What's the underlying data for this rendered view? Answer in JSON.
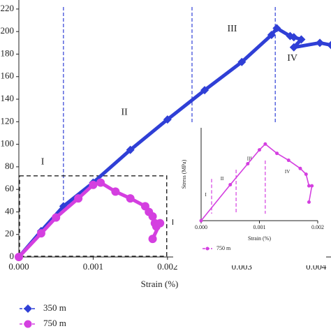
{
  "chart_data": [
    {
      "type": "line",
      "xlabel": "Strain (%)",
      "xlim": [
        0,
        0.0042
      ],
      "ylim": [
        0,
        228
      ],
      "xticks": [
        {
          "value": 0,
          "label": "0.000"
        },
        {
          "value": 0.001,
          "label": "0.001"
        },
        {
          "value": 0.002,
          "label": "0.002"
        },
        {
          "value": 0.003,
          "label": "0.003"
        },
        {
          "value": 0.004,
          "label": "0.004"
        }
      ],
      "yticks": [
        0,
        20,
        40,
        60,
        80,
        100,
        120,
        140,
        160,
        180,
        200,
        220
      ],
      "series": [
        {
          "name": "350 m",
          "color": "#2f3fd6",
          "marker": "diamond",
          "x": [
            0,
            0.0003,
            0.0006,
            0.001,
            0.0015,
            0.002,
            0.0025,
            0.003,
            0.0034,
            0.00347,
            0.00365,
            0.0037,
            0.0038,
            0.0037,
            0.00405,
            0.0042
          ],
          "values": [
            0,
            23,
            45,
            66,
            95,
            122,
            148,
            173,
            197,
            203,
            196,
            195,
            193,
            186,
            190,
            188
          ]
        },
        {
          "name": "750 m",
          "color": "#d43fe0",
          "marker": "circle",
          "x": [
            0,
            0.0003,
            0.0005,
            0.0008,
            0.001,
            0.0011,
            0.0013,
            0.0015,
            0.0017,
            0.00175,
            0.0018,
            0.00183,
            0.00185,
            0.0019,
            0.0018
          ],
          "values": [
            0,
            21,
            35,
            52,
            64,
            66,
            58,
            52,
            45,
            40,
            36,
            30,
            27,
            30,
            16
          ]
        }
      ],
      "vlines": [
        0.0006,
        0.00233,
        0.00345
      ],
      "annotations": [
        {
          "text": "I",
          "x": 0.00032,
          "y": 84
        },
        {
          "text": "II",
          "x": 0.00142,
          "y": 128
        },
        {
          "text": "III",
          "x": 0.00287,
          "y": 202
        },
        {
          "text": "IV",
          "x": 0.00368,
          "y": 176
        }
      ],
      "zoom_box": {
        "xlim": [
          0,
          0.00198
        ],
        "ylim": [
          0,
          72
        ]
      }
    },
    {
      "type": "line",
      "ylabel": "Stress (MPa)",
      "xlabel": "Strain (%)",
      "xlim": [
        0,
        0.002
      ],
      "ylim": [
        0,
        80
      ],
      "xticks": [
        {
          "value": 0,
          "label": "0.000"
        },
        {
          "value": 0.001,
          "label": "0.001"
        },
        {
          "value": 0.002,
          "label": "0.002"
        }
      ],
      "series": [
        {
          "name": "750 m",
          "color": "#d43fe0",
          "x": [
            0,
            0.0005,
            0.0008,
            0.001,
            0.0011,
            0.0013,
            0.0015,
            0.0017,
            0.0018,
            0.00185,
            0.0019,
            0.00185
          ],
          "values": [
            0,
            31,
            49,
            61,
            66,
            58,
            52,
            45,
            40,
            30,
            30,
            16
          ]
        }
      ],
      "vlines": [
        0.00018,
        0.0006,
        0.0011
      ],
      "annotations": [
        {
          "text": "I",
          "x": 8e-05,
          "y": 22
        },
        {
          "text": "II",
          "x": 0.00036,
          "y": 36
        },
        {
          "text": "III",
          "x": 0.00083,
          "y": 53
        },
        {
          "text": "IV",
          "x": 0.00148,
          "y": 42
        }
      ]
    }
  ]
}
